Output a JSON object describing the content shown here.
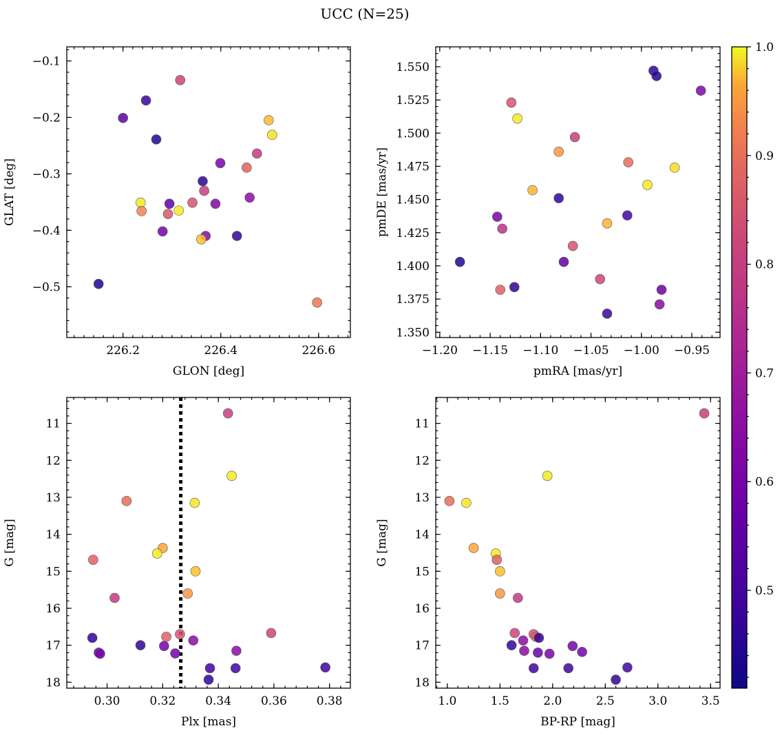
{
  "figure": {
    "title": "UCC (N=25)"
  },
  "colorbar": {
    "min": 0.41,
    "max": 1.0,
    "ticks": [
      0.5,
      0.6,
      0.7,
      0.8,
      0.9,
      1.0
    ],
    "tick_labels": [
      "0.5",
      "0.6",
      "0.7",
      "0.8",
      "0.9",
      "1.0"
    ],
    "colormap": "plasma"
  },
  "chart_data": [
    {
      "id": "glon-glat",
      "type": "scatter",
      "xlabel": "GLON [deg]",
      "ylabel": "GLAT [deg]",
      "xlim": [
        226.085,
        226.665
      ],
      "ylim": [
        -0.59,
        -0.075
      ],
      "inverted_y": false,
      "xticks": [
        226.2,
        226.4,
        226.6
      ],
      "xtick_labels": [
        "226.2",
        "226.4",
        "226.6"
      ],
      "yticks": [
        -0.1,
        -0.2,
        -0.3,
        -0.4,
        -0.5
      ],
      "ytick_labels": [
        "−0.1",
        "−0.2",
        "−0.3",
        "−0.4",
        "−0.5"
      ],
      "x_minor": 0.02,
      "y_minor": 0.02,
      "points": [
        {
          "x": 226.317,
          "y": -0.134,
          "c": 0.7
        },
        {
          "x": 226.247,
          "y": -0.17,
          "c": 0.46
        },
        {
          "x": 226.2,
          "y": -0.201,
          "c": 0.5
        },
        {
          "x": 226.268,
          "y": -0.239,
          "c": 0.43
        },
        {
          "x": 226.498,
          "y": -0.205,
          "c": 0.91
        },
        {
          "x": 226.505,
          "y": -0.231,
          "c": 0.97
        },
        {
          "x": 226.474,
          "y": -0.264,
          "c": 0.68
        },
        {
          "x": 226.399,
          "y": -0.281,
          "c": 0.55
        },
        {
          "x": 226.453,
          "y": -0.289,
          "c": 0.76
        },
        {
          "x": 226.363,
          "y": -0.313,
          "c": 0.44
        },
        {
          "x": 226.366,
          "y": -0.33,
          "c": 0.69
        },
        {
          "x": 226.459,
          "y": -0.342,
          "c": 0.58
        },
        {
          "x": 226.236,
          "y": -0.351,
          "c": 0.98
        },
        {
          "x": 226.295,
          "y": -0.353,
          "c": 0.51
        },
        {
          "x": 226.342,
          "y": -0.351,
          "c": 0.73
        },
        {
          "x": 226.389,
          "y": -0.353,
          "c": 0.56
        },
        {
          "x": 226.238,
          "y": -0.366,
          "c": 0.82
        },
        {
          "x": 226.314,
          "y": -0.365,
          "c": 0.98
        },
        {
          "x": 226.292,
          "y": -0.371,
          "c": 0.74
        },
        {
          "x": 226.281,
          "y": -0.402,
          "c": 0.54
        },
        {
          "x": 226.369,
          "y": -0.41,
          "c": 0.57
        },
        {
          "x": 226.36,
          "y": -0.416,
          "c": 0.92
        },
        {
          "x": 226.433,
          "y": -0.41,
          "c": 0.45
        },
        {
          "x": 226.15,
          "y": -0.495,
          "c": 0.43
        },
        {
          "x": 226.597,
          "y": -0.528,
          "c": 0.8
        }
      ]
    },
    {
      "id": "pmra-pmde",
      "type": "scatter",
      "xlabel": "pmRA [mas/yr]",
      "ylabel": "pmDE [mas/yr]",
      "xlim": [
        -1.204,
        -0.922
      ],
      "ylim": [
        1.346,
        1.565
      ],
      "inverted_y": false,
      "xticks": [
        -1.2,
        -1.15,
        -1.1,
        -1.05,
        -1.0,
        -0.95
      ],
      "xtick_labels": [
        "−1.20",
        "−1.15",
        "−1.10",
        "−1.05",
        "−1.00",
        "−0.95"
      ],
      "yticks": [
        1.35,
        1.375,
        1.4,
        1.425,
        1.45,
        1.475,
        1.5,
        1.525,
        1.55
      ],
      "ytick_labels": [
        "1.350",
        "1.375",
        "1.400",
        "1.425",
        "1.450",
        "1.475",
        "1.500",
        "1.525",
        "1.550"
      ],
      "x_minor": 0.01,
      "y_minor": 0.005,
      "points": [
        {
          "x": -0.988,
          "y": 1.547,
          "c": 0.45
        },
        {
          "x": -0.985,
          "y": 1.543,
          "c": 0.44
        },
        {
          "x": -0.941,
          "y": 1.532,
          "c": 0.56
        },
        {
          "x": -1.129,
          "y": 1.523,
          "c": 0.73
        },
        {
          "x": -1.123,
          "y": 1.511,
          "c": 0.98
        },
        {
          "x": -1.066,
          "y": 1.497,
          "c": 0.69
        },
        {
          "x": -1.082,
          "y": 1.486,
          "c": 0.86
        },
        {
          "x": -1.013,
          "y": 1.478,
          "c": 0.78
        },
        {
          "x": -0.967,
          "y": 1.474,
          "c": 0.96
        },
        {
          "x": -0.994,
          "y": 1.461,
          "c": 0.98
        },
        {
          "x": -1.108,
          "y": 1.457,
          "c": 0.9
        },
        {
          "x": -1.082,
          "y": 1.451,
          "c": 0.45
        },
        {
          "x": -1.014,
          "y": 1.438,
          "c": 0.47
        },
        {
          "x": -1.143,
          "y": 1.437,
          "c": 0.55
        },
        {
          "x": -1.034,
          "y": 1.432,
          "c": 0.9
        },
        {
          "x": -1.138,
          "y": 1.428,
          "c": 0.66
        },
        {
          "x": -1.068,
          "y": 1.415,
          "c": 0.73
        },
        {
          "x": -1.18,
          "y": 1.403,
          "c": 0.43
        },
        {
          "x": -1.077,
          "y": 1.403,
          "c": 0.51
        },
        {
          "x": -1.041,
          "y": 1.39,
          "c": 0.7
        },
        {
          "x": -1.126,
          "y": 1.384,
          "c": 0.45
        },
        {
          "x": -1.14,
          "y": 1.382,
          "c": 0.76
        },
        {
          "x": -0.98,
          "y": 1.382,
          "c": 0.53
        },
        {
          "x": -0.982,
          "y": 1.371,
          "c": 0.58
        },
        {
          "x": -1.034,
          "y": 1.364,
          "c": 0.46
        }
      ]
    },
    {
      "id": "plx-g",
      "type": "scatter",
      "xlabel": "Plx [mas]",
      "ylabel": "G [mag]",
      "xlim": [
        0.2855,
        0.3875
      ],
      "ylim": [
        18.16,
        10.3
      ],
      "inverted_y": true,
      "xticks": [
        0.3,
        0.32,
        0.34,
        0.36,
        0.38
      ],
      "xtick_labels": [
        "0.30",
        "0.32",
        "0.34",
        "0.36",
        "0.38"
      ],
      "yticks": [
        11,
        12,
        13,
        14,
        15,
        16,
        17,
        18
      ],
      "ytick_labels": [
        "11",
        "12",
        "13",
        "14",
        "15",
        "16",
        "17",
        "18"
      ],
      "x_minor": 0.004,
      "y_minor": 0.2,
      "vline": {
        "x": 0.3265,
        "style": "dotted"
      },
      "points": [
        {
          "x": 0.3435,
          "y": 10.73,
          "c": 0.69
        },
        {
          "x": 0.3448,
          "y": 12.42,
          "c": 0.98
        },
        {
          "x": 0.307,
          "y": 13.1,
          "c": 0.78
        },
        {
          "x": 0.3315,
          "y": 13.15,
          "c": 0.97
        },
        {
          "x": 0.32,
          "y": 14.37,
          "c": 0.88
        },
        {
          "x": 0.318,
          "y": 14.52,
          "c": 0.98
        },
        {
          "x": 0.295,
          "y": 14.69,
          "c": 0.76
        },
        {
          "x": 0.3318,
          "y": 15.0,
          "c": 0.92
        },
        {
          "x": 0.329,
          "y": 15.6,
          "c": 0.86
        },
        {
          "x": 0.3027,
          "y": 15.72,
          "c": 0.68
        },
        {
          "x": 0.359,
          "y": 16.67,
          "c": 0.7
        },
        {
          "x": 0.3262,
          "y": 16.7,
          "c": 0.73
        },
        {
          "x": 0.3213,
          "y": 16.77,
          "c": 0.76
        },
        {
          "x": 0.331,
          "y": 16.87,
          "c": 0.58
        },
        {
          "x": 0.2947,
          "y": 16.8,
          "c": 0.45
        },
        {
          "x": 0.312,
          "y": 17.0,
          "c": 0.45
        },
        {
          "x": 0.3205,
          "y": 17.02,
          "c": 0.54
        },
        {
          "x": 0.3465,
          "y": 17.15,
          "c": 0.58
        },
        {
          "x": 0.297,
          "y": 17.2,
          "c": 0.53
        },
        {
          "x": 0.2975,
          "y": 17.23,
          "c": 0.55
        },
        {
          "x": 0.3245,
          "y": 17.22,
          "c": 0.54
        },
        {
          "x": 0.337,
          "y": 17.62,
          "c": 0.47
        },
        {
          "x": 0.3462,
          "y": 17.62,
          "c": 0.47
        },
        {
          "x": 0.3785,
          "y": 17.6,
          "c": 0.47
        },
        {
          "x": 0.3365,
          "y": 17.93,
          "c": 0.45
        }
      ]
    },
    {
      "id": "bprp-g",
      "type": "scatter",
      "xlabel": "BP-RP [mag]",
      "ylabel": "G [mag]",
      "xlim": [
        0.89,
        3.59
      ],
      "ylim": [
        18.16,
        10.3
      ],
      "inverted_y": true,
      "xticks": [
        1.0,
        1.5,
        2.0,
        2.5,
        3.0,
        3.5
      ],
      "xtick_labels": [
        "1.0",
        "1.5",
        "2.0",
        "2.5",
        "3.0",
        "3.5"
      ],
      "yticks": [
        11,
        12,
        13,
        14,
        15,
        16,
        17,
        18
      ],
      "ytick_labels": [
        "11",
        "12",
        "13",
        "14",
        "15",
        "16",
        "17",
        "18"
      ],
      "x_minor": 0.1,
      "y_minor": 0.2,
      "points": [
        {
          "x": 3.44,
          "y": 10.73,
          "c": 0.69
        },
        {
          "x": 1.95,
          "y": 12.42,
          "c": 0.98
        },
        {
          "x": 1.02,
          "y": 13.1,
          "c": 0.78
        },
        {
          "x": 1.18,
          "y": 13.15,
          "c": 0.97
        },
        {
          "x": 1.25,
          "y": 14.37,
          "c": 0.88
        },
        {
          "x": 1.46,
          "y": 14.52,
          "c": 0.98
        },
        {
          "x": 1.47,
          "y": 14.69,
          "c": 0.76
        },
        {
          "x": 1.5,
          "y": 15.0,
          "c": 0.92
        },
        {
          "x": 1.5,
          "y": 15.6,
          "c": 0.86
        },
        {
          "x": 1.67,
          "y": 15.72,
          "c": 0.68
        },
        {
          "x": 1.64,
          "y": 16.67,
          "c": 0.7
        },
        {
          "x": 1.82,
          "y": 16.7,
          "c": 0.73
        },
        {
          "x": 1.84,
          "y": 16.77,
          "c": 0.76
        },
        {
          "x": 1.72,
          "y": 16.87,
          "c": 0.58
        },
        {
          "x": 1.87,
          "y": 16.8,
          "c": 0.45
        },
        {
          "x": 1.61,
          "y": 17.0,
          "c": 0.45
        },
        {
          "x": 2.19,
          "y": 17.02,
          "c": 0.54
        },
        {
          "x": 1.73,
          "y": 17.15,
          "c": 0.58
        },
        {
          "x": 1.86,
          "y": 17.2,
          "c": 0.53
        },
        {
          "x": 1.97,
          "y": 17.23,
          "c": 0.55
        },
        {
          "x": 2.28,
          "y": 17.18,
          "c": 0.54
        },
        {
          "x": 1.82,
          "y": 17.62,
          "c": 0.47
        },
        {
          "x": 2.15,
          "y": 17.62,
          "c": 0.47
        },
        {
          "x": 2.71,
          "y": 17.6,
          "c": 0.47
        },
        {
          "x": 2.6,
          "y": 17.93,
          "c": 0.45
        }
      ]
    }
  ]
}
